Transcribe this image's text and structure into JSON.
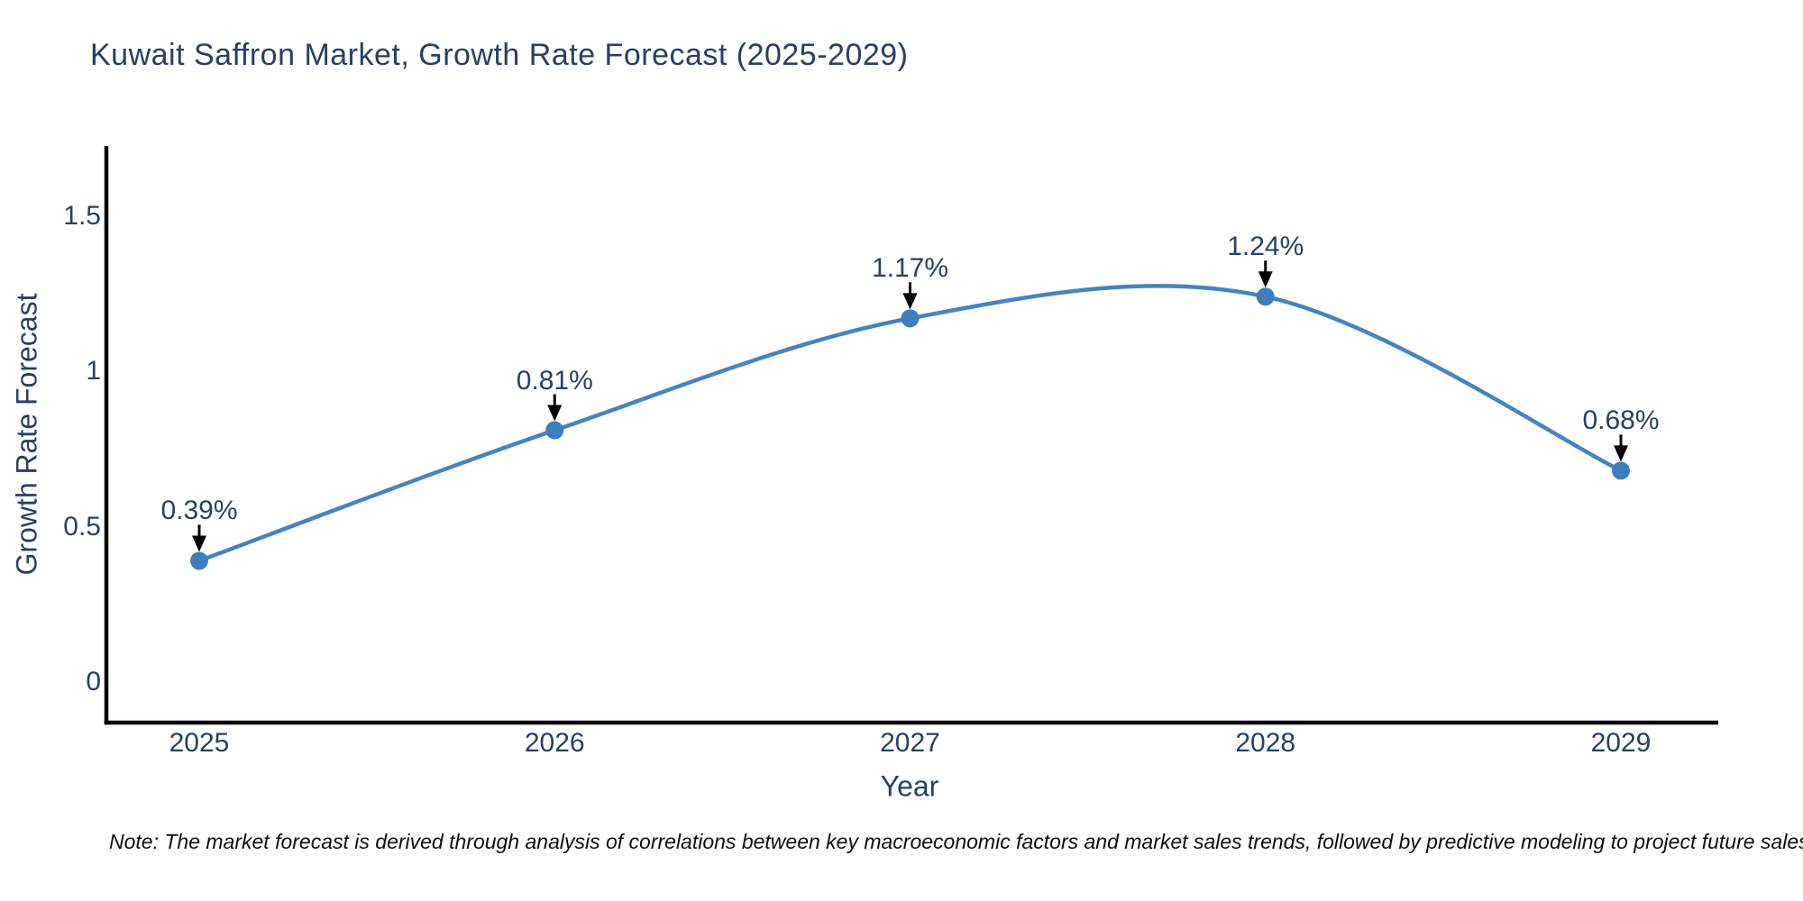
{
  "chart_data": {
    "type": "line",
    "title": "Kuwait Saffron Market, Growth Rate Forecast (2025-2029)",
    "xlabel": "Year",
    "ylabel": "Growth Rate Forecast",
    "categories": [
      "2025",
      "2026",
      "2027",
      "2028",
      "2029"
    ],
    "series": [
      {
        "name": "Growth Rate Forecast",
        "values": [
          0.39,
          0.81,
          1.17,
          1.24,
          0.68
        ],
        "point_labels": [
          "0.39%",
          "0.81%",
          "1.17%",
          "1.24%",
          "0.68%"
        ]
      }
    ],
    "y_ticks": [
      0,
      0.5,
      1,
      1.5
    ],
    "y_tick_labels": [
      "0",
      "0.5",
      "1",
      "1.5"
    ],
    "ylim": [
      -0.13,
      1.72
    ],
    "line_shape": "spline",
    "grid": false,
    "legend_position": "none",
    "annotations_style": "value label with black arrow pointing down at each marker",
    "colors": {
      "line": "#4484bf",
      "marker": "#3d7ebd",
      "text": "#2a3f5f",
      "axis": "#000000",
      "arrow": "#000000",
      "background": "#ffffff"
    },
    "note": "Note: The market forecast is derived through analysis of correlations between key macroeconomic factors and market sales trends, followed by predictive modeling to project future sales"
  }
}
